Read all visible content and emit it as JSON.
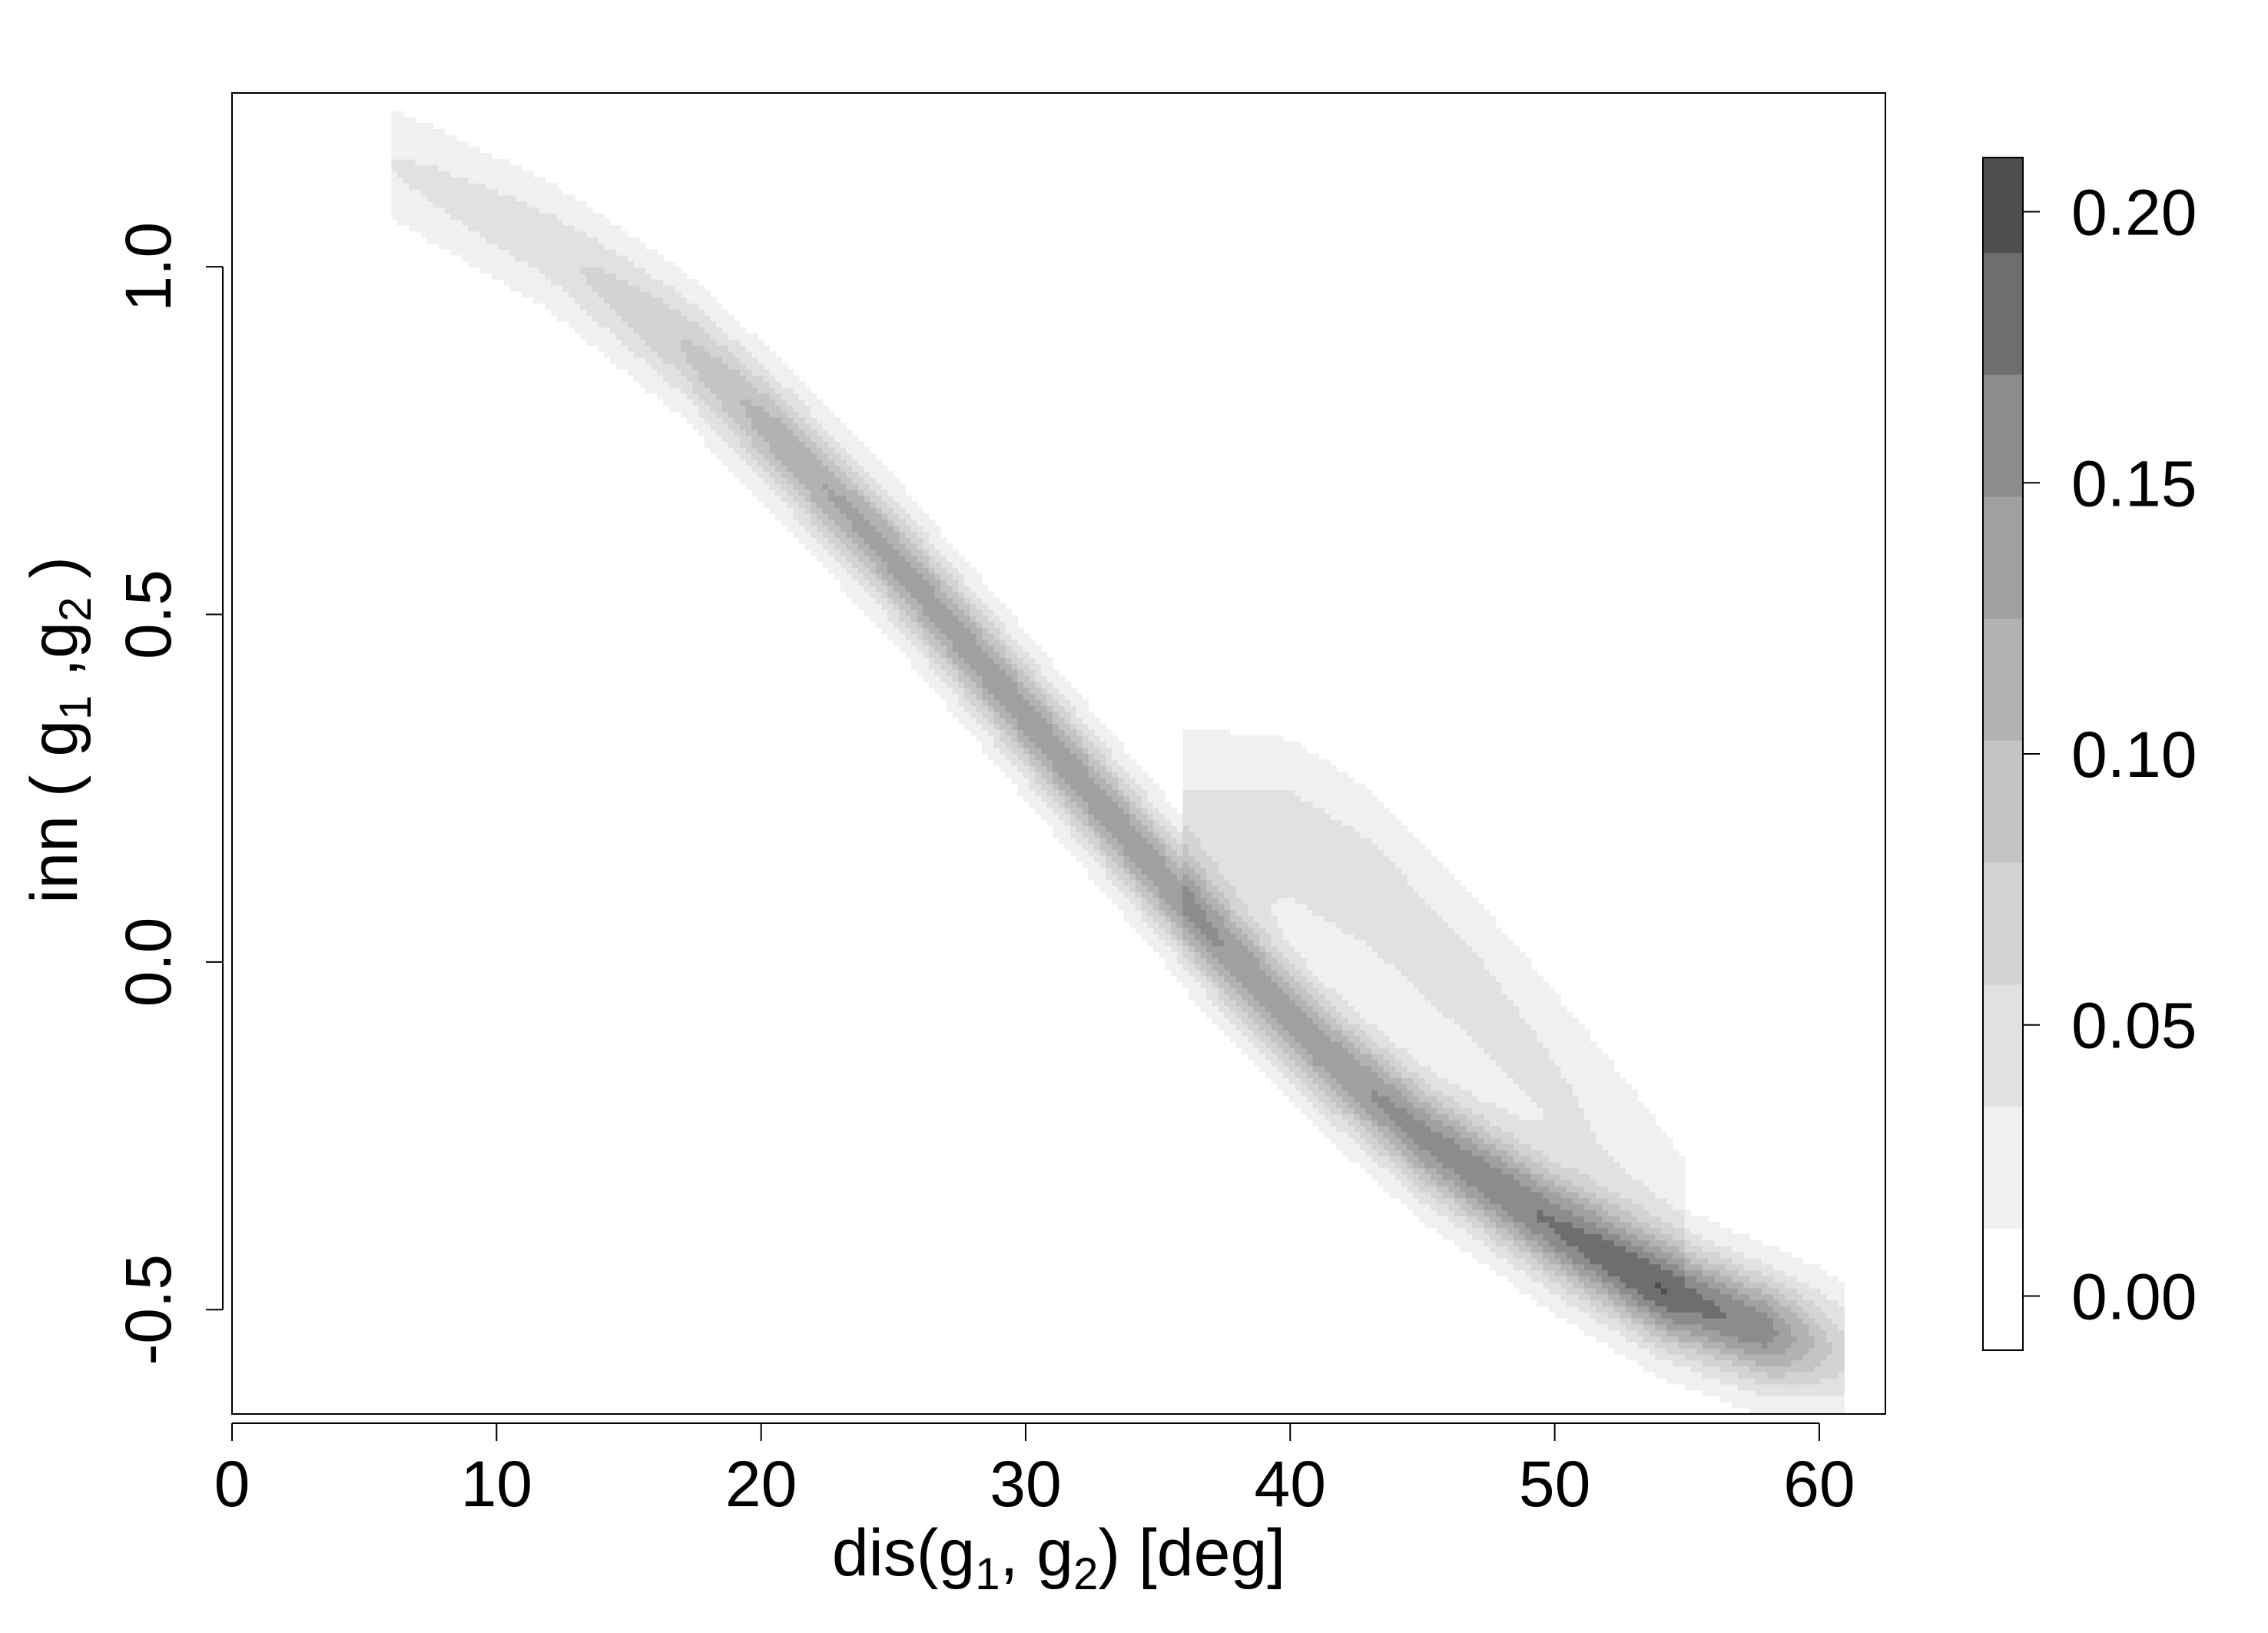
{
  "chart_data": {
    "type": "heatmap",
    "subtype": "filled-contour",
    "title": "",
    "xlabel": {
      "main": "dis(g",
      "sub1": "1",
      "mid": ", g",
      "sub2": "2",
      "tail": ") [deg]"
    },
    "ylabel": {
      "main": "inn ( g",
      "sub1": "1",
      "mid": " ,g",
      "sub2": "2",
      "tail": " )"
    },
    "xlim": [
      0,
      62.5
    ],
    "ylim": [
      -0.65,
      1.25
    ],
    "x_ticks": [
      0,
      10,
      20,
      30,
      40,
      50,
      60
    ],
    "x_tick_labels": [
      "0",
      "10",
      "20",
      "30",
      "40",
      "50",
      "60"
    ],
    "y_ticks": [
      -0.5,
      0.0,
      0.5,
      1.0
    ],
    "y_tick_labels": [
      "-0.5",
      "0.0",
      "0.5",
      "1.0"
    ],
    "grid": false,
    "colorbar": {
      "range": [
        -0.01,
        0.21
      ],
      "ticks": [
        0.0,
        0.05,
        0.1,
        0.15,
        0.2
      ],
      "tick_labels": [
        "0.00",
        "0.05",
        "0.10",
        "0.15",
        "0.20"
      ],
      "levels": [
        -0.01,
        0.0125,
        0.035,
        0.0575,
        0.08,
        0.1025,
        0.125,
        0.1475,
        0.17,
        0.1925,
        0.21
      ],
      "colors": [
        "#ffffff",
        "#f0f0f0",
        "#e1e1e1",
        "#d3d3d3",
        "#c4c4c4",
        "#b2b2b2",
        "#a0a0a0",
        "#8c8c8c",
        "#6e6e6e",
        "#4e4e4e",
        "#000000"
      ]
    },
    "density_components": [
      {
        "ridge": [
          [
            6,
            1.15
          ],
          [
            12,
            1.03
          ],
          [
            17,
            0.89
          ],
          [
            21,
            0.74
          ],
          [
            25,
            0.58
          ],
          [
            29,
            0.4
          ],
          [
            33,
            0.22
          ],
          [
            37,
            0.04
          ],
          [
            41,
            -0.12
          ],
          [
            45,
            -0.25
          ],
          [
            50,
            -0.38
          ],
          [
            54,
            -0.47
          ],
          [
            58,
            -0.53
          ],
          [
            61,
            -0.56
          ]
        ],
        "width": 0.055,
        "peak": [
          0.035,
          0.05,
          0.08,
          0.12,
          0.135,
          0.14,
          0.14,
          0.14,
          0.14,
          0.155,
          0.17,
          0.185,
          0.16,
          0.06
        ]
      },
      {
        "ridge": [
          [
            36,
            0.2
          ],
          [
            40,
            0.17
          ],
          [
            43,
            0.1
          ],
          [
            47,
            -0.05
          ],
          [
            51,
            -0.22
          ],
          [
            55,
            -0.38
          ]
        ],
        "width": 0.09,
        "peak": [
          0.04,
          0.05,
          0.05,
          0.045,
          0.035,
          0.02
        ]
      }
    ]
  }
}
